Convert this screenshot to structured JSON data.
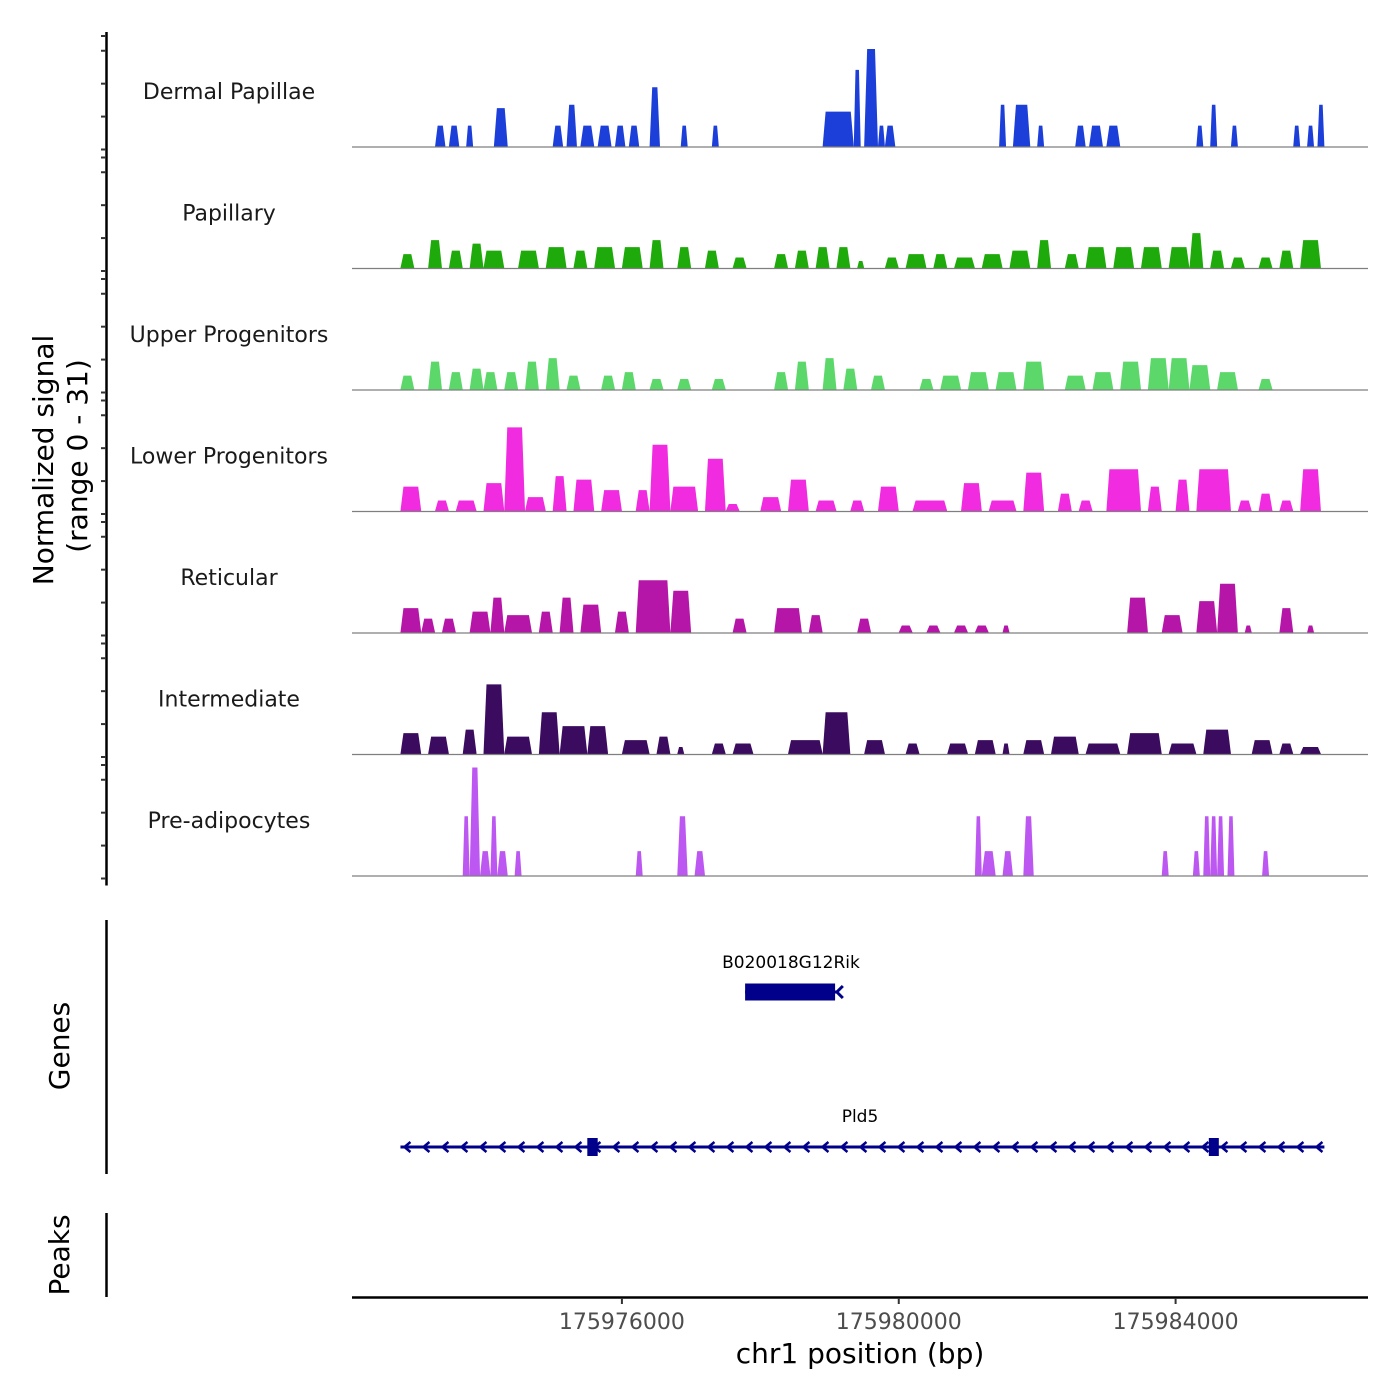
{
  "chart_data": {
    "type": "area",
    "title": "",
    "ylabel_line1": "Normalized signal",
    "ylabel_line2": "(range 0 - 31)",
    "y_range": [
      0,
      31
    ],
    "xlabel": "chr1 position (bp)",
    "chromosome": "chr1",
    "x_range": [
      175972100,
      175986780
    ],
    "x_ticks": [
      175976000,
      175980000,
      175984000
    ],
    "x_tick_labels": [
      "175976000",
      "175980000",
      "175984000"
    ],
    "grid": false,
    "tracks": [
      {
        "name": "Dermal Papillae",
        "color": "#1c3fd9",
        "peaks": [
          [
            175973300,
            175973450,
            6
          ],
          [
            175973500,
            175973650,
            6
          ],
          [
            175973750,
            175973850,
            6
          ],
          [
            175974150,
            175974350,
            11
          ],
          [
            175975000,
            175975150,
            6
          ],
          [
            175975200,
            175975350,
            12
          ],
          [
            175975400,
            175975600,
            6
          ],
          [
            175975650,
            175975850,
            6
          ],
          [
            175975900,
            175976050,
            6
          ],
          [
            175976100,
            175976250,
            6
          ],
          [
            175976400,
            175976550,
            17
          ],
          [
            175976850,
            175976950,
            6
          ],
          [
            175977300,
            175977400,
            6
          ],
          [
            175978900,
            175979350,
            10
          ],
          [
            175979350,
            175979450,
            22
          ],
          [
            175979500,
            175979700,
            28
          ],
          [
            175979700,
            175979800,
            6
          ],
          [
            175979800,
            175979950,
            6
          ],
          [
            175981450,
            175981550,
            12
          ],
          [
            175981650,
            175981900,
            12
          ],
          [
            175982000,
            175982100,
            6
          ],
          [
            175982550,
            175982700,
            6
          ],
          [
            175982750,
            175982950,
            6
          ],
          [
            175983000,
            175983200,
            6
          ],
          [
            175984300,
            175984400,
            6
          ],
          [
            175984500,
            175984600,
            12
          ],
          [
            175984800,
            175984900,
            6
          ],
          [
            175985700,
            175985800,
            6
          ],
          [
            175985900,
            175986000,
            6
          ],
          [
            175986050,
            175986150,
            12
          ]
        ]
      },
      {
        "name": "Papillary",
        "color": "#1faa0b",
        "peaks": [
          [
            175972800,
            175973000,
            4
          ],
          [
            175973200,
            175973400,
            8
          ],
          [
            175973500,
            175973700,
            5
          ],
          [
            175973800,
            175974000,
            7
          ],
          [
            175974000,
            175974300,
            5
          ],
          [
            175974500,
            175974800,
            5
          ],
          [
            175974900,
            175975200,
            6
          ],
          [
            175975300,
            175975500,
            5
          ],
          [
            175975600,
            175975900,
            6
          ],
          [
            175976000,
            175976300,
            6
          ],
          [
            175976400,
            175976600,
            8
          ],
          [
            175976800,
            175977000,
            6
          ],
          [
            175977200,
            175977400,
            5
          ],
          [
            175977600,
            175977800,
            3
          ],
          [
            175978200,
            175978400,
            4
          ],
          [
            175978500,
            175978700,
            5
          ],
          [
            175978800,
            175979000,
            6
          ],
          [
            175979100,
            175979300,
            6
          ],
          [
            175979400,
            175979500,
            2
          ],
          [
            175979800,
            175980000,
            3
          ],
          [
            175980100,
            175980400,
            4
          ],
          [
            175980500,
            175980700,
            4
          ],
          [
            175980800,
            175981100,
            3
          ],
          [
            175981200,
            175981500,
            4
          ],
          [
            175981600,
            175981900,
            5
          ],
          [
            175982000,
            175982200,
            8
          ],
          [
            175982400,
            175982600,
            4
          ],
          [
            175982700,
            175983000,
            6
          ],
          [
            175983100,
            175983400,
            6
          ],
          [
            175983500,
            175983800,
            6
          ],
          [
            175983900,
            175984200,
            6
          ],
          [
            175984200,
            175984400,
            10
          ],
          [
            175984500,
            175984700,
            5
          ],
          [
            175984800,
            175985000,
            3
          ],
          [
            175985200,
            175985400,
            3
          ],
          [
            175985500,
            175985700,
            5
          ],
          [
            175985800,
            175986100,
            8
          ]
        ]
      },
      {
        "name": "Upper Progenitors",
        "color": "#5cd86b",
        "peaks": [
          [
            175972800,
            175973000,
            4
          ],
          [
            175973200,
            175973400,
            8
          ],
          [
            175973500,
            175973700,
            5
          ],
          [
            175973800,
            175974000,
            6
          ],
          [
            175974000,
            175974200,
            5
          ],
          [
            175974300,
            175974500,
            5
          ],
          [
            175974600,
            175974800,
            8
          ],
          [
            175974900,
            175975100,
            9
          ],
          [
            175975200,
            175975400,
            4
          ],
          [
            175975700,
            175975900,
            4
          ],
          [
            175976000,
            175976200,
            5
          ],
          [
            175976400,
            175976600,
            3
          ],
          [
            175976800,
            175977000,
            3
          ],
          [
            175977300,
            175977500,
            3
          ],
          [
            175978200,
            175978400,
            5
          ],
          [
            175978500,
            175978700,
            8
          ],
          [
            175978900,
            175979100,
            9
          ],
          [
            175979200,
            175979400,
            6
          ],
          [
            175979600,
            175979800,
            4
          ],
          [
            175980300,
            175980500,
            3
          ],
          [
            175980600,
            175980900,
            4
          ],
          [
            175981000,
            175981300,
            5
          ],
          [
            175981400,
            175981700,
            5
          ],
          [
            175981800,
            175982100,
            8
          ],
          [
            175982400,
            175982700,
            4
          ],
          [
            175982800,
            175983100,
            5
          ],
          [
            175983200,
            175983500,
            8
          ],
          [
            175983600,
            175983900,
            9
          ],
          [
            175983900,
            175984200,
            9
          ],
          [
            175984200,
            175984500,
            7
          ],
          [
            175984600,
            175984900,
            5
          ],
          [
            175985200,
            175985400,
            3
          ]
        ]
      },
      {
        "name": "Lower Progenitors",
        "color": "#f02be0",
        "peaks": [
          [
            175972800,
            175973100,
            7
          ],
          [
            175973300,
            175973500,
            3
          ],
          [
            175973600,
            175973900,
            3
          ],
          [
            175974000,
            175974300,
            8
          ],
          [
            175974300,
            175974600,
            24
          ],
          [
            175974600,
            175974900,
            4
          ],
          [
            175975000,
            175975200,
            10
          ],
          [
            175975300,
            175975600,
            9
          ],
          [
            175975700,
            175976000,
            6
          ],
          [
            175976200,
            175976400,
            6
          ],
          [
            175976400,
            175976700,
            19
          ],
          [
            175976700,
            175977100,
            7
          ],
          [
            175977200,
            175977500,
            15
          ],
          [
            175977500,
            175977700,
            2
          ],
          [
            175978000,
            175978300,
            4
          ],
          [
            175978400,
            175978700,
            9
          ],
          [
            175978800,
            175979100,
            3
          ],
          [
            175979300,
            175979500,
            3
          ],
          [
            175979700,
            175980000,
            7
          ],
          [
            175980200,
            175980700,
            3
          ],
          [
            175980900,
            175981200,
            8
          ],
          [
            175981300,
            175981700,
            3
          ],
          [
            175981800,
            175982100,
            11
          ],
          [
            175982300,
            175982500,
            5
          ],
          [
            175982600,
            175982800,
            3
          ],
          [
            175983000,
            175983500,
            12
          ],
          [
            175983600,
            175983800,
            7
          ],
          [
            175984000,
            175984200,
            9
          ],
          [
            175984300,
            175984800,
            12
          ],
          [
            175984900,
            175985100,
            3
          ],
          [
            175985200,
            175985400,
            5
          ],
          [
            175985500,
            175985700,
            3
          ],
          [
            175985800,
            175986100,
            12
          ]
        ]
      },
      {
        "name": "Reticular",
        "color": "#b516a8",
        "peaks": [
          [
            175972800,
            175973100,
            7
          ],
          [
            175973100,
            175973300,
            4
          ],
          [
            175973400,
            175973600,
            4
          ],
          [
            175973800,
            175974100,
            6
          ],
          [
            175974100,
            175974300,
            10
          ],
          [
            175974300,
            175974700,
            5
          ],
          [
            175974800,
            175975000,
            6
          ],
          [
            175975100,
            175975300,
            10
          ],
          [
            175975400,
            175975700,
            8
          ],
          [
            175975900,
            175976100,
            6
          ],
          [
            175976200,
            175976700,
            15
          ],
          [
            175976700,
            175977000,
            12
          ],
          [
            175977600,
            175977800,
            4
          ],
          [
            175978200,
            175978600,
            7
          ],
          [
            175978700,
            175978900,
            5
          ],
          [
            175979400,
            175979600,
            4
          ],
          [
            175980000,
            175980200,
            2
          ],
          [
            175980400,
            175980600,
            2
          ],
          [
            175980800,
            175981000,
            2
          ],
          [
            175981100,
            175981300,
            2
          ],
          [
            175981500,
            175981600,
            2
          ],
          [
            175983300,
            175983600,
            10
          ],
          [
            175983800,
            175984100,
            5
          ],
          [
            175984300,
            175984600,
            9
          ],
          [
            175984600,
            175984900,
            14
          ],
          [
            175985000,
            175985100,
            2
          ],
          [
            175985500,
            175985700,
            7
          ],
          [
            175985900,
            175986000,
            2
          ]
        ]
      },
      {
        "name": "Intermediate",
        "color": "#3b0b5f",
        "peaks": [
          [
            175972800,
            175973100,
            6
          ],
          [
            175973200,
            175973500,
            5
          ],
          [
            175973700,
            175973900,
            7
          ],
          [
            175974000,
            175974300,
            20
          ],
          [
            175974300,
            175974700,
            5
          ],
          [
            175974800,
            175975100,
            12
          ],
          [
            175975100,
            175975500,
            8
          ],
          [
            175975500,
            175975800,
            8
          ],
          [
            175976000,
            175976400,
            4
          ],
          [
            175976500,
            175976700,
            5
          ],
          [
            175976800,
            175976900,
            2
          ],
          [
            175977300,
            175977500,
            3
          ],
          [
            175977600,
            175977900,
            3
          ],
          [
            175978400,
            175978900,
            4
          ],
          [
            175978900,
            175979300,
            12
          ],
          [
            175979500,
            175979800,
            4
          ],
          [
            175980100,
            175980300,
            3
          ],
          [
            175980700,
            175981000,
            3
          ],
          [
            175981100,
            175981400,
            4
          ],
          [
            175981500,
            175981600,
            3
          ],
          [
            175981800,
            175982100,
            4
          ],
          [
            175982200,
            175982600,
            5
          ],
          [
            175982700,
            175983200,
            3
          ],
          [
            175983300,
            175983800,
            6
          ],
          [
            175983900,
            175984300,
            3
          ],
          [
            175984400,
            175984800,
            7
          ],
          [
            175985100,
            175985400,
            4
          ],
          [
            175985500,
            175985700,
            3
          ],
          [
            175985800,
            175986100,
            2
          ]
        ]
      },
      {
        "name": "Pre-adipocytes",
        "color": "#bd57f2",
        "peaks": [
          [
            175973700,
            175973800,
            17
          ],
          [
            175973800,
            175973950,
            31
          ],
          [
            175973950,
            175974100,
            7
          ],
          [
            175974100,
            175974200,
            17
          ],
          [
            175974200,
            175974350,
            7
          ],
          [
            175974450,
            175974550,
            7
          ],
          [
            175976200,
            175976300,
            7
          ],
          [
            175976800,
            175976950,
            17
          ],
          [
            175977050,
            175977200,
            7
          ],
          [
            175981100,
            175981200,
            17
          ],
          [
            175981200,
            175981400,
            7
          ],
          [
            175981500,
            175981650,
            7
          ],
          [
            175981800,
            175981950,
            17
          ],
          [
            175983800,
            175983900,
            7
          ],
          [
            175984250,
            175984350,
            7
          ],
          [
            175984400,
            175984500,
            17
          ],
          [
            175984500,
            175984600,
            17
          ],
          [
            175984600,
            175984700,
            17
          ],
          [
            175984750,
            175984850,
            17
          ],
          [
            175985250,
            175985350,
            7
          ]
        ]
      }
    ],
    "genes": [
      {
        "name": "B020018G12Rik",
        "strand": "-",
        "color": "#00008b",
        "start": 175977780,
        "end": 175979120,
        "exons": [
          [
            175977780,
            175979080
          ]
        ]
      },
      {
        "name": "Pld5",
        "strand": "-",
        "color": "#00008b",
        "start": 175972800,
        "end": 175986150,
        "exons": [
          [
            175975500,
            175975650
          ],
          [
            175984480,
            175984620
          ]
        ]
      }
    ],
    "peaks_track": {
      "label": "Peaks",
      "regions": []
    },
    "genes_track_label": "Genes"
  }
}
